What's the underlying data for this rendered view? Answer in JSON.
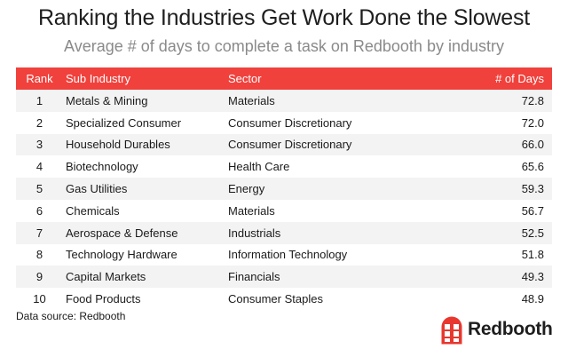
{
  "header": {
    "title": "Ranking the Industries Get Work Done the Slowest",
    "subtitle": "Average # of days to complete a task on Redbooth by industry"
  },
  "chart_data": {
    "type": "table",
    "columns": [
      "Rank",
      "Sub Industry",
      "Sector",
      "# of Days"
    ],
    "rows": [
      {
        "rank": "1",
        "sub_industry": "Metals & Mining",
        "sector": "Materials",
        "days": "72.8"
      },
      {
        "rank": "2",
        "sub_industry": "Specialized Consumer",
        "sector": "Consumer Discretionary",
        "days": "72.0"
      },
      {
        "rank": "3",
        "sub_industry": "Household Durables",
        "sector": "Consumer Discretionary",
        "days": "66.0"
      },
      {
        "rank": "4",
        "sub_industry": "Biotechnology",
        "sector": "Health Care",
        "days": "65.6"
      },
      {
        "rank": "5",
        "sub_industry": "Gas Utilities",
        "sector": "Energy",
        "days": "59.3"
      },
      {
        "rank": "6",
        "sub_industry": "Chemicals",
        "sector": "Materials",
        "days": "56.7"
      },
      {
        "rank": "7",
        "sub_industry": "Aerospace & Defense",
        "sector": "Industrials",
        "days": "52.5"
      },
      {
        "rank": "8",
        "sub_industry": "Technology Hardware",
        "sector": "Information Technology",
        "days": "51.8"
      },
      {
        "rank": "9",
        "sub_industry": "Capital Markets",
        "sector": "Financials",
        "days": "49.3"
      },
      {
        "rank": "10",
        "sub_industry": "Food Products",
        "sector": "Consumer Staples",
        "days": "48.9"
      }
    ]
  },
  "footer": {
    "source": "Data source: Redbooth",
    "logo_text": "Redbooth"
  },
  "colors": {
    "header_accent": "#f0413c",
    "stripe": "#f3f3f3",
    "logo_red": "#e8372f"
  },
  "icons": {
    "logo_mark": "redbooth-logo-icon"
  }
}
